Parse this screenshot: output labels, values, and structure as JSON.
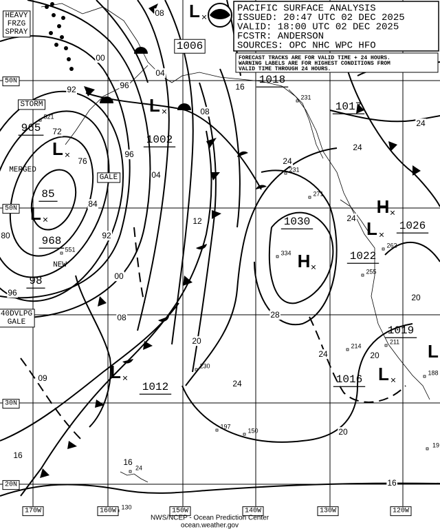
{
  "header": {
    "lines": [
      "PACIFIC SURFACE ANALYSIS",
      "ISSUED: 20:47 UTC 02 DEC 2025",
      "VALID:  18:00 UTC 02 DEC 2025",
      "FCSTR:  ANDERSON",
      "SOURCES: OPC NHC WPC HFO"
    ],
    "note": [
      "FORECAST TRACKS ARE FOR VALID TIME + 24 HOURS.",
      "WARNING LABELS ARE FOR HIGHEST CONDITIONS FROM",
      "VALID TIME THROUGH 24 HOURS."
    ]
  },
  "warnings": [
    {
      "lines": [
        "HEAVY",
        "FRZG",
        "SPRAY"
      ]
    },
    {
      "lines": [
        "STORM"
      ]
    },
    {
      "lines": [
        "GALE"
      ]
    },
    {
      "lines": [
        "MERGED"
      ]
    },
    {
      "lines": [
        "NEW"
      ]
    },
    {
      "lines": [
        "40DVLPG",
        "GALE"
      ]
    }
  ],
  "centers": [
    "L",
    "L",
    "L",
    "L",
    "H",
    "L",
    "H",
    "L",
    "L",
    "L"
  ],
  "center_pressures": [
    "1006",
    "1018",
    "1017",
    "965",
    "1002",
    "85",
    "1030",
    "1026",
    "968",
    "1022",
    "98",
    "1019",
    "1016",
    "1012"
  ],
  "isobar_labels": [
    "08",
    "00",
    "04",
    "92",
    "96",
    "16",
    "08",
    "72",
    "76",
    "96",
    "04",
    "84",
    "12",
    "92",
    "80",
    "00",
    "96",
    "08",
    "28",
    "20",
    "24",
    "09",
    "24",
    "20",
    "20",
    "24",
    "24",
    "24",
    "24",
    "16",
    "20",
    "16",
    "16"
  ],
  "station_labels": [
    "231",
    "821",
    "231",
    "271",
    "334",
    "262",
    "255",
    "551",
    "211",
    "214",
    "188",
    "230",
    "197",
    "150",
    "19",
    "24",
    "130"
  ],
  "latitudes": [
    "50N",
    "50N",
    "30N",
    "20N"
  ],
  "longitudes": [
    "170W",
    "160W",
    "150W",
    "140W",
    "130W",
    "120W"
  ],
  "footer": [
    "NWS/NCEP - Ocean Prediction Center",
    "ocean.weather.gov"
  ]
}
